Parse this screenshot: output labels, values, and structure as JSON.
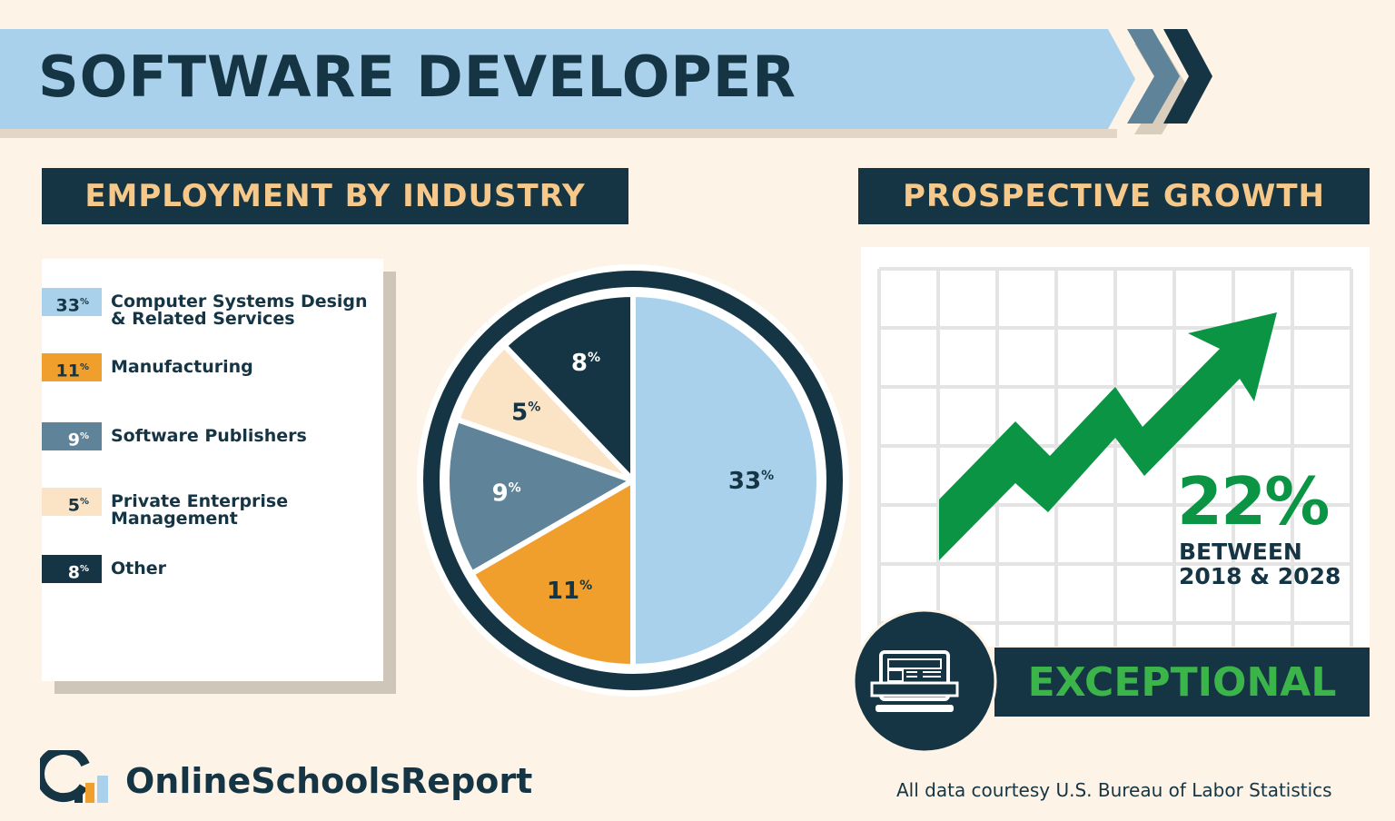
{
  "title": "SOFTWARE DEVELOPER",
  "employment": {
    "heading": "EMPLOYMENT BY INDUSTRY"
  },
  "growth": {
    "heading": "PROSPECTIVE GROWTH",
    "value": "22%",
    "period_line1": "BETWEEN",
    "period_line2": "2018 & 2028",
    "rating": "EXCEPTIONAL"
  },
  "footer": {
    "brand": "OnlineSchoolsReport",
    "source": "All data courtesy U.S. Bureau of Labor Statistics"
  },
  "colors": {
    "navy": "#163544",
    "light_blue": "#a9d1ec",
    "orange": "#f09e2c",
    "slate": "#5f8398",
    "peach": "#fbe3c5",
    "green": "#0a9444",
    "bright_green": "#3bb54a"
  },
  "icons": [
    "chevrons-right-icon",
    "laptop-ruler-icon",
    "logo-icon"
  ],
  "chart_data": {
    "type": "pie",
    "title": "EMPLOYMENT BY INDUSTRY",
    "categories": [
      "Computer Systems Design & Related Services",
      "Manufacturing",
      "Software Publishers",
      "Private Enterprise Management",
      "Other"
    ],
    "values": [
      33,
      11,
      9,
      5,
      8
    ],
    "labels": [
      "33",
      "11",
      "9",
      "5",
      "8"
    ],
    "unit": "%",
    "colors": [
      "#a9d1ec",
      "#f09e2c",
      "#5f8398",
      "#fbe3c5",
      "#163544"
    ],
    "label_colors": [
      "#163544",
      "#163544",
      "#ffffff",
      "#163544",
      "#ffffff"
    ],
    "legend": "left"
  }
}
